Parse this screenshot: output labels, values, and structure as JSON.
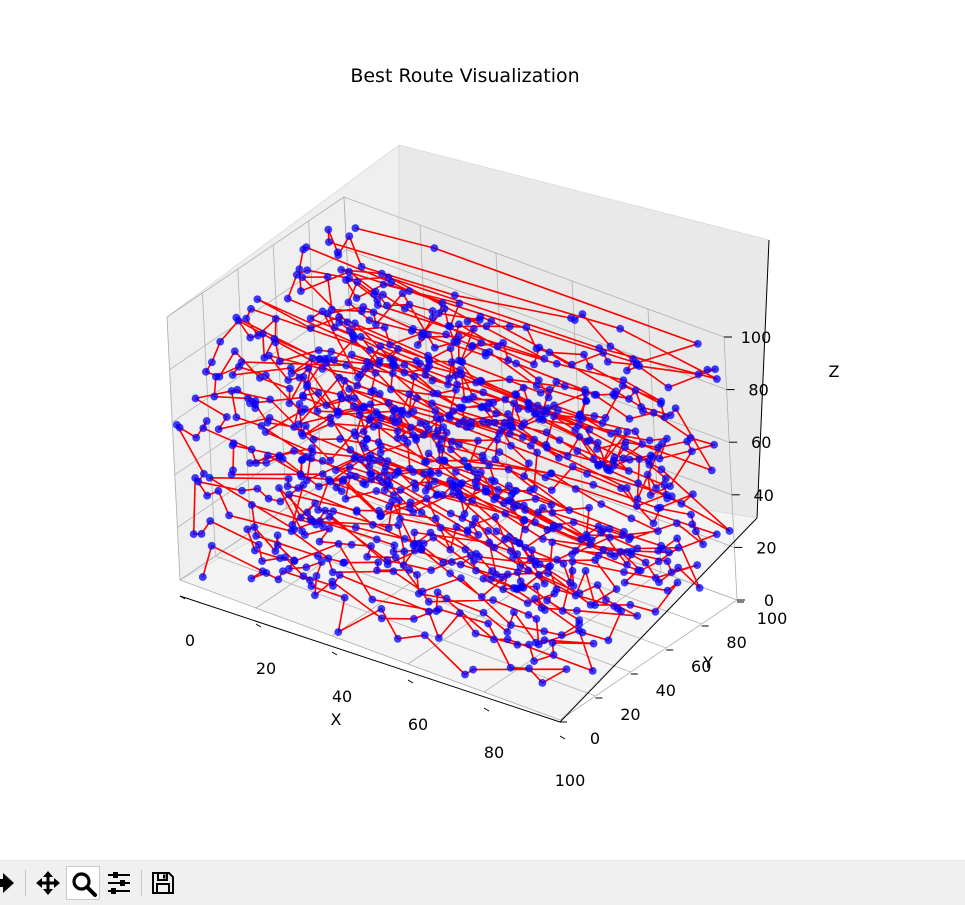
{
  "chart_data": {
    "type": "scatter",
    "title": "Best Route Visualization",
    "xlabel": "X",
    "ylabel": "Y",
    "zlabel": "Z",
    "xlim": [
      0,
      100
    ],
    "ylim": [
      0,
      100
    ],
    "zlim": [
      0,
      100
    ],
    "xticks": [
      "0",
      "20",
      "40",
      "60",
      "80",
      "100"
    ],
    "yticks": [
      "0",
      "20",
      "40",
      "60",
      "80",
      "100"
    ],
    "zticks": [
      "0",
      "20",
      "40",
      "60",
      "80",
      "100"
    ],
    "grid": true,
    "point_color": "#0000ff",
    "line_color": "#ff0000",
    "point_count": 1000,
    "route": "red lines connect all points in visiting order"
  },
  "toolbar": {
    "buttons": [
      {
        "name": "forward-button",
        "icon": "forward-arrow-icon"
      },
      {
        "name": "pan-button",
        "icon": "move-arrows-icon"
      },
      {
        "name": "zoom-button",
        "icon": "magnifier-icon",
        "active": true
      },
      {
        "name": "configure-subplots-button",
        "icon": "sliders-icon"
      },
      {
        "name": "save-button",
        "icon": "floppy-disk-icon"
      }
    ]
  }
}
